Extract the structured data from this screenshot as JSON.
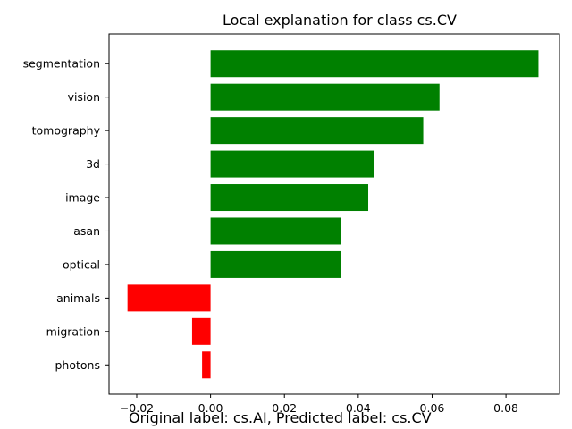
{
  "chart_data": {
    "type": "bar",
    "orientation": "horizontal",
    "title": "Local explanation for class cs.CV",
    "xlabel": "",
    "ylabel": "",
    "categories": [
      "segmentation",
      "vision",
      "tomography",
      "3d",
      "image",
      "asan",
      "optical",
      "animals",
      "migration",
      "photons"
    ],
    "values": [
      0.0888,
      0.062,
      0.0576,
      0.0443,
      0.0427,
      0.0354,
      0.0352,
      -0.0225,
      -0.005,
      -0.0023
    ],
    "xlim": [
      -0.0275,
      0.0945
    ],
    "xticks": [
      -0.02,
      0.0,
      0.02,
      0.04,
      0.06,
      0.08
    ],
    "xtick_labels": [
      "−0.02",
      "0.00",
      "0.02",
      "0.04",
      "0.06",
      "0.08"
    ],
    "grid": false,
    "colors": {
      "positive": "#008000",
      "negative": "#ff0000",
      "axis": "#000000"
    }
  },
  "caption": "Original label: cs.AI, Predicted label: cs.CV"
}
